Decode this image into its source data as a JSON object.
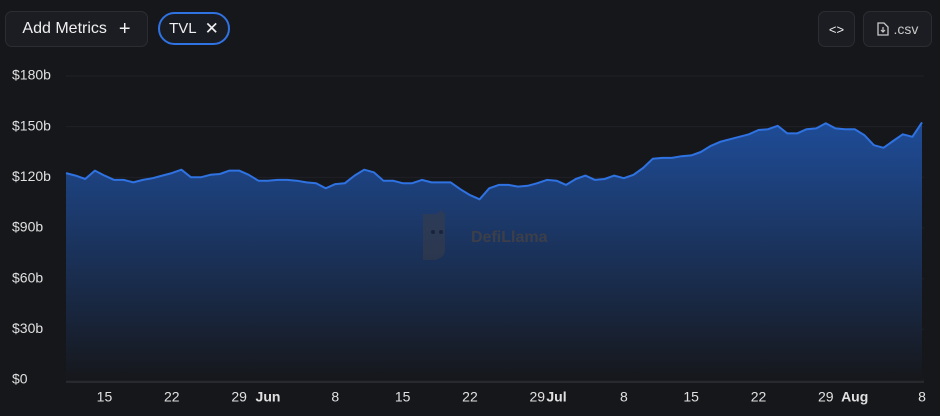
{
  "toolbar": {
    "add_metrics": "Add Metrics",
    "metric": "TVL",
    "csv": ".csv"
  },
  "watermark": "DefiLlama",
  "chart_data": {
    "type": "area",
    "categories": [
      null,
      null,
      null,
      null,
      "15",
      null,
      null,
      null,
      null,
      null,
      null,
      "22",
      null,
      null,
      null,
      null,
      null,
      null,
      "29",
      null,
      null,
      "Jun",
      null,
      null,
      null,
      null,
      null,
      null,
      "8",
      null,
      null,
      null,
      null,
      null,
      null,
      "15",
      null,
      null,
      null,
      null,
      null,
      null,
      "22",
      null,
      null,
      null,
      null,
      null,
      null,
      "29",
      null,
      "Jul",
      null,
      null,
      null,
      null,
      null,
      null,
      "8",
      null,
      null,
      null,
      null,
      null,
      null,
      "15",
      null,
      null,
      null,
      null,
      null,
      null,
      "22",
      null,
      null,
      null,
      null,
      null,
      null,
      "29",
      null,
      null,
      "Aug",
      null,
      null,
      null,
      null,
      null,
      null,
      "8"
    ],
    "series": [
      {
        "name": "TVL",
        "color": "#2f72e2",
        "values": [
          122.5,
          121,
          119,
          124,
          121,
          118.5,
          118.5,
          117,
          118.5,
          119.5,
          121,
          122.5,
          124.5,
          120,
          120,
          121.5,
          122,
          124,
          124,
          121.5,
          118,
          118,
          118.5,
          118.5,
          118,
          117,
          116.5,
          113.5,
          116,
          116.5,
          121,
          124.5,
          123,
          118,
          118,
          116.5,
          116.5,
          118.5,
          117,
          117,
          117,
          113,
          109.5,
          107,
          113.5,
          115.5,
          115.5,
          114.5,
          115,
          116.5,
          118.5,
          118,
          115.5,
          119,
          121,
          118.5,
          119,
          121,
          119.5,
          121.5,
          125.5,
          131,
          131.5,
          131.5,
          132.5,
          133,
          135,
          138.5,
          141,
          142.5,
          144,
          145.5,
          148,
          148.5,
          150.5,
          146,
          146,
          148.5,
          149,
          152,
          149,
          148.5,
          148.5,
          145,
          139,
          137.5,
          141.5,
          145.5,
          144,
          152.5
        ]
      }
    ],
    "ylim": [
      0,
      180
    ],
    "yticks": [
      {
        "value": 0,
        "label": "$0"
      },
      {
        "value": 30,
        "label": "$30b"
      },
      {
        "value": 60,
        "label": "$60b"
      },
      {
        "value": 90,
        "label": "$90b"
      },
      {
        "value": 120,
        "label": "$120b"
      },
      {
        "value": 150,
        "label": "$150b"
      },
      {
        "value": 180,
        "label": "$180b"
      }
    ],
    "grid": true
  }
}
